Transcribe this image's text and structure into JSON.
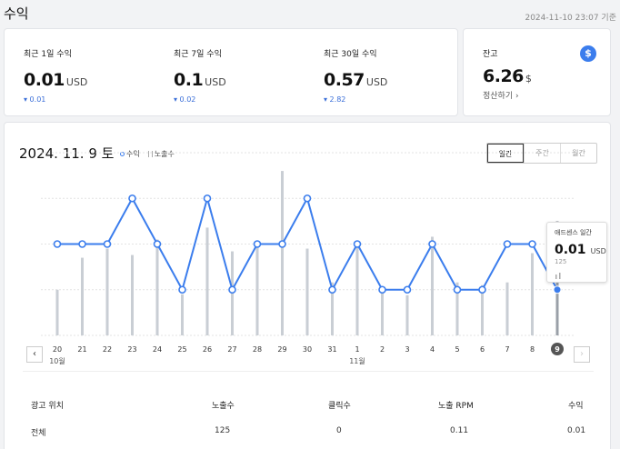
{
  "header": {
    "title": "수익",
    "updated": "2024-11-10 23:07 기준"
  },
  "summary": [
    {
      "label": "최근 1일 수익",
      "value": "0.01",
      "unit": "USD",
      "delta": "▾ 0.01"
    },
    {
      "label": "최근 7일 수익",
      "value": "0.1",
      "unit": "USD",
      "delta": "▾ 0.02"
    },
    {
      "label": "최근 30일 수익",
      "value": "0.57",
      "unit": "USD",
      "delta": "▾ 2.82"
    }
  ],
  "balance": {
    "label": "잔고",
    "icon": "dollar-icon",
    "value": "6.26",
    "unit": "$",
    "payout_link": "정산하기 ›"
  },
  "chart": {
    "date": "2024. 11. 9 토",
    "legend_revenue": "수익",
    "legend_impressions": "노출수",
    "tabs": [
      "일간",
      "주간",
      "월간"
    ],
    "selected_tab": "일간",
    "month_labels": [
      "10월",
      "11월"
    ],
    "selected_label": "9",
    "accent": "#3b7ded"
  },
  "tooltip": {
    "title": "애드센스 일간",
    "value": "0.01",
    "unit": "USD",
    "impressions": "125"
  },
  "chart_data": {
    "type": "bar",
    "categories": [
      "20",
      "21",
      "22",
      "23",
      "24",
      "25",
      "26",
      "27",
      "28",
      "29",
      "30",
      "31",
      "1",
      "2",
      "3",
      "4",
      "5",
      "6",
      "7",
      "8",
      "9"
    ],
    "series": [
      {
        "name": "수익",
        "type": "line",
        "values": [
          0.02,
          0.02,
          0.02,
          0.03,
          0.02,
          0.01,
          0.03,
          0.01,
          0.02,
          0.02,
          0.03,
          0.01,
          0.02,
          0.01,
          0.01,
          0.02,
          0.01,
          0.01,
          0.02,
          0.02,
          0.01
        ]
      },
      {
        "name": "노출수",
        "type": "bar",
        "values": [
          50,
          85,
          95,
          88,
          105,
          45,
          118,
          92,
          102,
          180,
          95,
          58,
          98,
          48,
          44,
          108,
          58,
          55,
          58,
          90,
          125
        ]
      }
    ],
    "ylim_revenue": [
      0,
      0.04
    ],
    "ylim_impressions": [
      0,
      200
    ],
    "grid": true
  },
  "table": {
    "headers": [
      "광고 위치",
      "노출수",
      "클릭수",
      "노출 RPM",
      "수익"
    ],
    "rows": [
      [
        "전체",
        "125",
        "0",
        "0.11",
        "0.01"
      ]
    ]
  }
}
